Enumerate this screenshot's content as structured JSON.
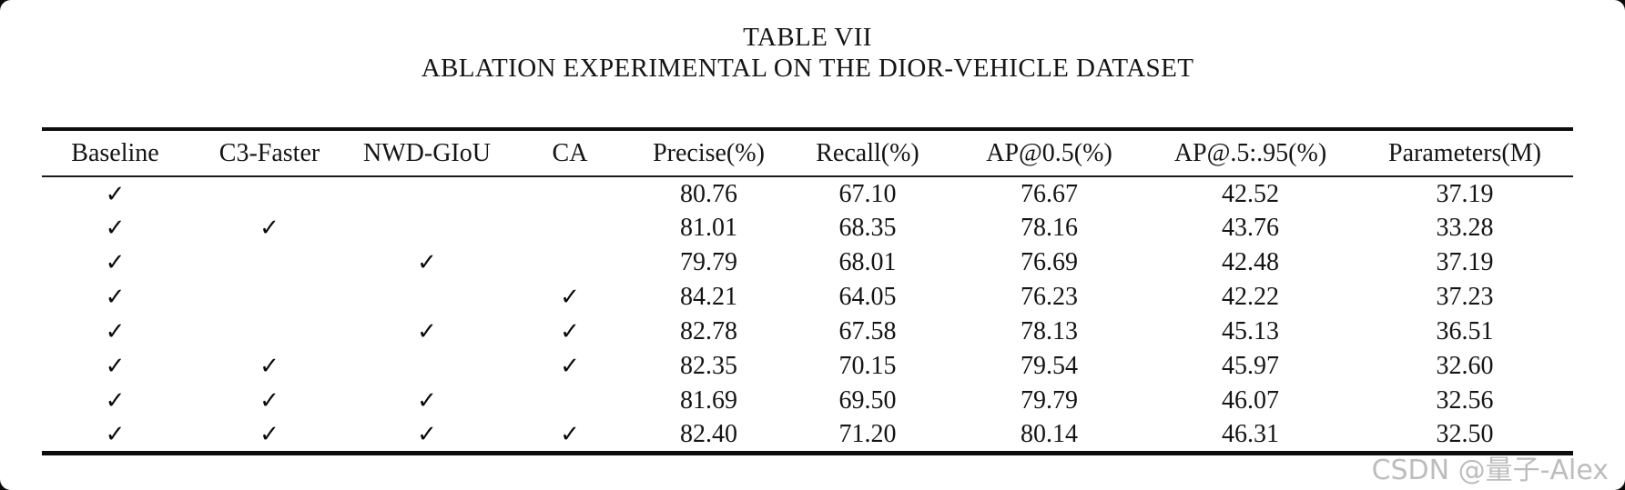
{
  "caption": {
    "title": "TABLE VII",
    "subtitle": "ABLATION EXPERIMENTAL ON THE DIOR-VEHICLE DATASET"
  },
  "checkmark_glyph": "✓",
  "watermark": {
    "text": "CSDN @量子-Alex",
    "color": "#bdbdbd"
  },
  "colors": {
    "page_bg": "#ffffff",
    "frame_bg": "#0a0a0a",
    "text": "#141414",
    "rule": "#0d0d0d"
  },
  "chart_data": {
    "type": "table",
    "title": "TABLE VII — ABLATION EXPERIMENTAL ON THE DIOR-VEHICLE DATASET",
    "columns": [
      "Baseline",
      "C3-Faster",
      "NWD-GIoU",
      "CA",
      "Precise(%)",
      "Recall(%)",
      "AP@0.5(%)",
      "AP@.5:.95(%)",
      "Parameters(M)"
    ],
    "rows": [
      {
        "checks": [
          true,
          false,
          false,
          false
        ],
        "values": [
          "80.76",
          "67.10",
          "76.67",
          "42.52",
          "37.19"
        ]
      },
      {
        "checks": [
          true,
          true,
          false,
          false
        ],
        "values": [
          "81.01",
          "68.35",
          "78.16",
          "43.76",
          "33.28"
        ]
      },
      {
        "checks": [
          true,
          false,
          true,
          false
        ],
        "values": [
          "79.79",
          "68.01",
          "76.69",
          "42.48",
          "37.19"
        ]
      },
      {
        "checks": [
          true,
          false,
          false,
          true
        ],
        "values": [
          "84.21",
          "64.05",
          "76.23",
          "42.22",
          "37.23"
        ]
      },
      {
        "checks": [
          true,
          false,
          true,
          true
        ],
        "values": [
          "82.78",
          "67.58",
          "78.13",
          "45.13",
          "36.51"
        ]
      },
      {
        "checks": [
          true,
          true,
          false,
          true
        ],
        "values": [
          "82.35",
          "70.15",
          "79.54",
          "45.97",
          "32.60"
        ]
      },
      {
        "checks": [
          true,
          true,
          true,
          false
        ],
        "values": [
          "81.69",
          "69.50",
          "79.79",
          "46.07",
          "32.56"
        ]
      },
      {
        "checks": [
          true,
          true,
          true,
          true
        ],
        "values": [
          "82.40",
          "71.20",
          "80.14",
          "46.31",
          "32.50"
        ]
      }
    ]
  }
}
